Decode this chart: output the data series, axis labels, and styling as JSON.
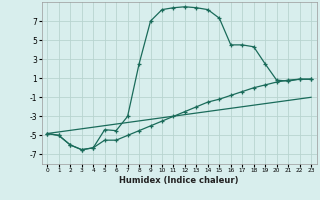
{
  "xlabel": "Humidex (Indice chaleur)",
  "bg_color": "#d8eeed",
  "grid_color": "#b8d4d0",
  "line_color": "#1a6b5a",
  "xlim": [
    -0.5,
    23.5
  ],
  "ylim": [
    -8.0,
    9.0
  ],
  "yticks": [
    -7,
    -5,
    -3,
    -1,
    1,
    3,
    5,
    7
  ],
  "xticks": [
    0,
    1,
    2,
    3,
    4,
    5,
    6,
    7,
    8,
    9,
    10,
    11,
    12,
    13,
    14,
    15,
    16,
    17,
    18,
    19,
    20,
    21,
    22,
    23
  ],
  "line1_x": [
    0,
    1,
    2,
    3,
    4,
    5,
    6,
    7,
    8,
    9,
    10,
    11,
    12,
    13,
    14,
    15,
    16,
    17,
    18,
    19,
    20,
    21,
    22,
    23
  ],
  "line1_y": [
    -4.8,
    -5.0,
    -6.0,
    -6.5,
    -6.3,
    -4.4,
    -4.5,
    -3.0,
    2.5,
    7.0,
    8.2,
    8.4,
    8.5,
    8.4,
    8.2,
    7.3,
    4.5,
    4.5,
    4.3,
    2.5,
    0.8,
    0.7,
    0.9,
    0.9
  ],
  "line2_x": [
    0,
    1,
    2,
    3,
    4,
    5,
    6,
    7,
    8,
    9,
    10,
    11,
    12,
    13,
    14,
    15,
    16,
    17,
    18,
    19,
    20,
    21,
    22,
    23
  ],
  "line2_y": [
    -4.8,
    -5.0,
    -6.0,
    -6.5,
    -6.3,
    -5.5,
    -5.5,
    -5.0,
    -4.5,
    -4.0,
    -3.5,
    -3.0,
    -2.5,
    -2.0,
    -1.5,
    -1.2,
    -0.8,
    -0.4,
    0.0,
    0.3,
    0.6,
    0.8,
    0.9,
    0.9
  ],
  "line3_x": [
    0,
    23
  ],
  "line3_y": [
    -4.8,
    -1.0
  ]
}
